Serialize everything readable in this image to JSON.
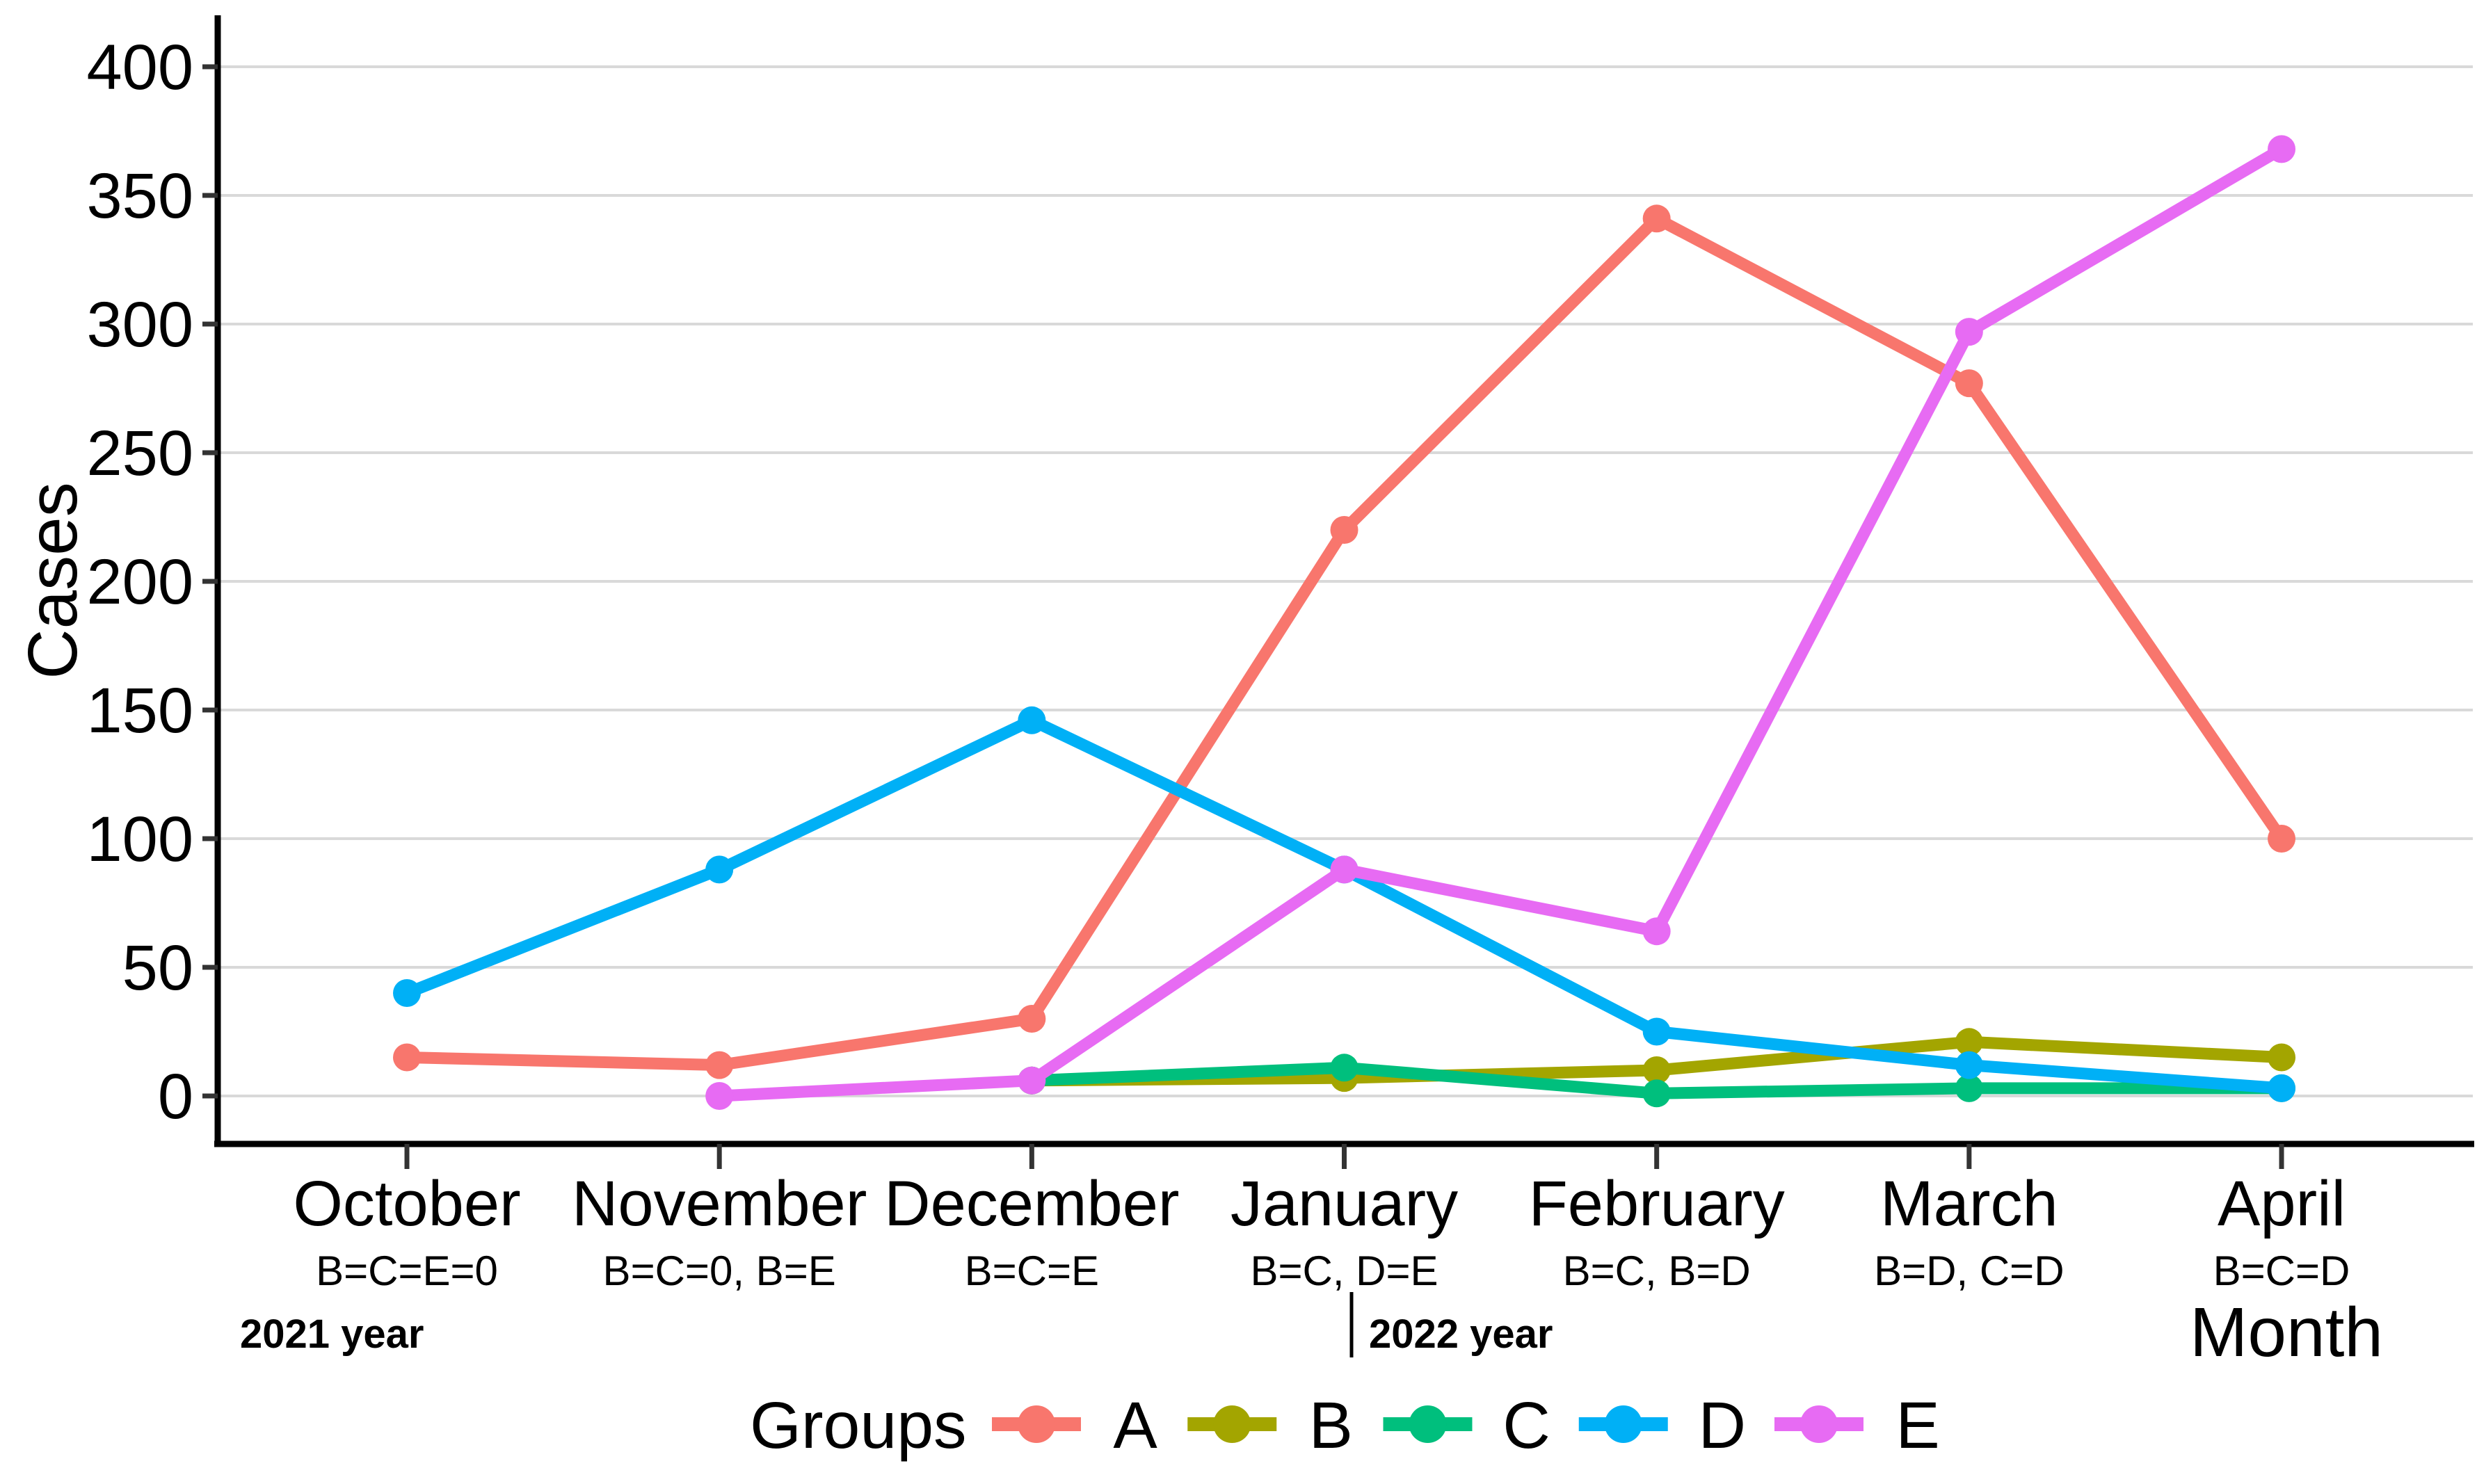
{
  "chart_data": {
    "type": "line",
    "title": "",
    "ylabel": "Cases",
    "xlabel": "Month",
    "legend_title": "Groups",
    "legend_position": "bottom",
    "ylim": [
      0,
      400
    ],
    "y_ticks": [
      0,
      50,
      100,
      150,
      200,
      250,
      300,
      350,
      400
    ],
    "grid": "horizontal-major-only",
    "categories": [
      "October",
      "November",
      "December",
      "January",
      "February",
      "March",
      "April"
    ],
    "month_annotations": [
      "B=C=E=0",
      "B=C=0, B=E",
      "B=C=E",
      "B=C, D=E",
      "B=C, B=D",
      "B=D, C=D",
      "B=C=D"
    ],
    "year_labels": [
      {
        "text": "2021 year",
        "anchor_month": "October"
      },
      {
        "text": "2022 year",
        "anchor_month": "January",
        "divider_tick": true
      }
    ],
    "series": [
      {
        "name": "A",
        "color": "#F8766D",
        "values": [
          15,
          12,
          30,
          220,
          341,
          277,
          100
        ]
      },
      {
        "name": "B",
        "color": "#A3A500",
        "values": [
          null,
          null,
          6,
          7,
          10,
          21,
          15
        ]
      },
      {
        "name": "C",
        "color": "#00BF7D",
        "values": [
          null,
          null,
          6,
          11,
          1,
          3,
          3
        ]
      },
      {
        "name": "D",
        "color": "#00B0F6",
        "values": [
          40,
          88,
          146,
          88,
          25,
          12,
          3
        ]
      },
      {
        "name": "E",
        "color": "#E76BF3",
        "values": [
          null,
          0,
          6,
          88,
          64,
          297,
          368
        ]
      }
    ],
    "colors": {
      "axis_line": "#000000",
      "tick_mark": "#333333",
      "gridline": "#d9d9d9",
      "text": "#000000",
      "background": "#ffffff"
    }
  }
}
